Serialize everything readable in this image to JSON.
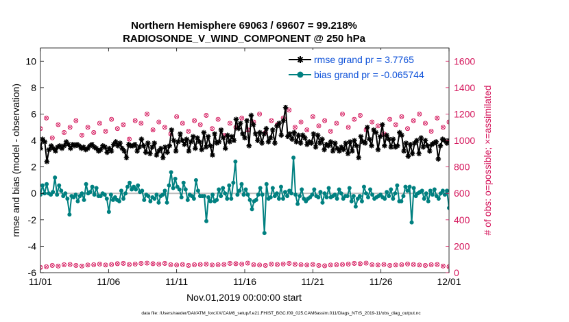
{
  "chart_data": {
    "type": "line",
    "title": "Northern Hemisphere 69063 / 69607 = 99.218%",
    "subtitle": "RADIOSONDE_V_WIND_COMPONENT @ 250 hPa",
    "xlabel": "Nov.01,2019 00:00:00 start",
    "ylabel_left": "rmse and bias (model - observation)",
    "ylabel_right": "# of obs: o=possible; ×=assimilated",
    "footer": "data file: /Users/raeder/DAI/ATM_forcXX/CAM6_setup/f.e21.FHIST_BGC.f09_025.CAM6assim.011/Diags_NTrS_2019-11/obs_diag_output.nc",
    "xlim": [
      0,
      30
    ],
    "xtick_values": [
      0,
      5,
      10,
      15,
      20,
      25,
      30
    ],
    "xtick_labels": [
      "11/01",
      "11/06",
      "11/11",
      "11/16",
      "11/21",
      "11/26",
      "12/01"
    ],
    "ylim_left": [
      -6,
      11
    ],
    "yticks_left": [
      -6,
      -4,
      -2,
      0,
      2,
      4,
      6,
      8,
      10
    ],
    "ylim_right": [
      0,
      1700
    ],
    "yticks_right": [
      0,
      200,
      400,
      600,
      800,
      1000,
      1200,
      1400,
      1600
    ],
    "series": [
      {
        "name": "rmse grand pr = 3.7765",
        "color": "#000000",
        "marker": "asterisk",
        "values": [
          3.4,
          4.1,
          3.9,
          2.4,
          3.3,
          3.6,
          3.4,
          3.2,
          3.5,
          3.6,
          3.4,
          3.6,
          3.9,
          3.7,
          3.4,
          3.7,
          3.6,
          3.7,
          3.6,
          3.4,
          3.5,
          3.3,
          3.4,
          3.6,
          3.7,
          3.5,
          3.4,
          3.2,
          3.3,
          3.6,
          3.5,
          3.1,
          3.4,
          3.2,
          3.7,
          3.9,
          3.6,
          3.8,
          3.4,
          3.2,
          2.7,
          3.7,
          3.6,
          3.6,
          3.7,
          3.2,
          3.5,
          4.1,
          3.6,
          3.1,
          3.8,
          3.0,
          3.5,
          3.8,
          2.9,
          3.2,
          3.4,
          2.7,
          3.5,
          3.1,
          3.6,
          4.8,
          4.0,
          3.2,
          3.9,
          4.5,
          4.0,
          3.7,
          4.1,
          3.2,
          3.9,
          4.3,
          3.4,
          4.2,
          3.9,
          3.3,
          4.6,
          3.5,
          4.3,
          3.6,
          2.9,
          4.5,
          3.8,
          3.9,
          4.8,
          4.2,
          3.4,
          4.4,
          3.9,
          4.3,
          4.0,
          5.6,
          4.9,
          5.3,
          4.5,
          4.2,
          5.5,
          3.6,
          5.9,
          5.2,
          4.5,
          4.0,
          4.6,
          3.8,
          4.5,
          4.9,
          3.9,
          4.2,
          4.8,
          3.8,
          5.1,
          5.3,
          4.4,
          5.5,
          6.5,
          4.3,
          4.5,
          4.1,
          4.6,
          3.9,
          4.4,
          3.8,
          4.4,
          4.2,
          3.7,
          3.9,
          3.8,
          4.5,
          3.5,
          4.4,
          3.8,
          4.1,
          3.3,
          3.7,
          3.6,
          3.9,
          3.2,
          3.8,
          3.4,
          3.2,
          3.5,
          3.3,
          3.8,
          3.0,
          3.9,
          3.2,
          4.0,
          3.6,
          2.7,
          4.3,
          3.9,
          3.8,
          5.0,
          4.1,
          3.6,
          4.8,
          4.6,
          3.3,
          4.3,
          5.2,
          3.6,
          4.4,
          4.1,
          3.5,
          4.1,
          3.5,
          3.6,
          4.6,
          4.4,
          3.2,
          3.8,
          2.8,
          3.7,
          3.0,
          3.8,
          4.0,
          3.0,
          4.2,
          3.5,
          4.0,
          3.6,
          3.2,
          3.7,
          3.8,
          3.9,
          2.6,
          3.6,
          4.1,
          4.0,
          3.8,
          4.0
        ]
      },
      {
        "name": "bias grand pr = -0.065744",
        "color": "#008080",
        "marker": "circle",
        "values": [
          -0.1,
          0.6,
          0.0,
          0.7,
          0.0,
          -0.1,
          0.1,
          1.2,
          -0.1,
          0.6,
          0.2,
          -0.2,
          0.0,
          -0.4,
          -1.6,
          -0.2,
          -0.3,
          -0.1,
          -0.6,
          -0.2,
          0.0,
          -0.5,
          0.7,
          0.0,
          0.1,
          0.5,
          -0.1,
          0.4,
          -0.2,
          -0.2,
          0.0,
          -0.1,
          -0.4,
          -1.4,
          -0.1,
          -0.5,
          -0.3,
          -0.5,
          -0.6,
          0.2,
          -0.4,
          0.0,
          0.5,
          0.8,
          0.3,
          0.5,
          0.3,
          0.6,
          0.1,
          0.2,
          -0.5,
          -0.1,
          -0.2,
          -0.6,
          -0.3,
          -0.4,
          -0.1,
          -0.7,
          -0.2,
          -0.1,
          0.2,
          -0.7,
          0.6,
          1.6,
          0.4,
          1.1,
          0.5,
          0.3,
          -0.3,
          0.8,
          0.3,
          -0.5,
          -0.1,
          -0.2,
          -0.4,
          1.0,
          0.2,
          -0.2,
          -0.2,
          -0.2,
          -2.1,
          -0.3,
          -0.6,
          -0.1,
          -0.6,
          -0.5,
          0.3,
          -0.2,
          0.4,
          0.0,
          -0.4,
          0.6,
          -0.4,
          0.8,
          2.4,
          -0.1,
          0.2,
          0.7,
          -0.1,
          0.3,
          -0.1,
          -0.5,
          -1.2,
          -0.6,
          -0.5,
          -0.1,
          0.4,
          -0.1,
          -3.0,
          0.7,
          -0.4,
          -0.3,
          0.4,
          -0.2,
          0.0,
          -0.4,
          0.5,
          -0.4,
          0.1,
          -0.2,
          0.2,
          0.0,
          2.7,
          -0.1,
          -0.8,
          -0.2,
          0.3,
          -0.4,
          -0.6,
          -0.4,
          -0.3,
          -0.1,
          0.3,
          -0.2,
          -0.3,
          0.1,
          -0.7,
          0.0,
          -0.3,
          0.4,
          -0.3,
          -0.2,
          -0.1,
          -0.4,
          0.3,
          0.0,
          -0.4,
          -0.2,
          -0.2,
          0.4,
          -0.6,
          -0.2,
          -1.0,
          -0.4,
          -0.2,
          -0.6,
          0.5,
          0.0,
          -0.3,
          0.3,
          -0.1,
          -0.4,
          -0.3,
          -0.2,
          -0.1,
          -0.3,
          -0.4,
          0.1,
          -0.2,
          0.3,
          -0.4,
          0.0,
          0.6,
          -0.6,
          -0.6,
          -0.2,
          0.5,
          0.2,
          0.5,
          -2.2,
          0.4,
          -0.2,
          0.0,
          0.1,
          0.2,
          -0.4,
          0.0,
          -0.6,
          0.2,
          -0.1,
          0.3,
          -0.2,
          -0.4,
          0.0,
          0.2,
          -0.1,
          0.2,
          -1.1
        ]
      },
      {
        "name": "possible",
        "color": "#d4145a",
        "axis": "right",
        "marker": "o",
        "values": [
          1090,
          1170,
          1020,
          1120,
          1060,
          1100,
          1150,
          1040,
          1100,
          1060,
          1130,
          1070,
          1160,
          1090,
          1120,
          1010,
          1150,
          1130,
          1200,
          1080,
          1140,
          1100,
          1050,
          1180,
          1130,
          1070,
          1150,
          1120,
          1190,
          1090,
          1160,
          1040,
          1130,
          1100,
          1170,
          1080,
          1140,
          1200,
          1060,
          1150,
          1120,
          1170,
          1230,
          1100,
          1140,
          1080,
          1180,
          1110,
          1150,
          1070,
          1130,
          1200,
          1100,
          1160,
          1190,
          1080,
          1140,
          1110,
          1050,
          1160,
          1120,
          1180,
          1090,
          1150,
          1200,
          1130,
          1070,
          1170,
          1100,
          1140
        ]
      },
      {
        "name": "assimilated",
        "color": "#d4145a",
        "axis": "right",
        "marker": "x",
        "values": [
          40,
          45,
          55,
          50,
          60,
          62,
          55,
          50,
          58,
          60,
          65,
          58,
          62,
          68,
          70,
          62,
          65,
          70,
          72,
          68,
          65,
          70,
          60,
          58,
          62,
          55,
          60,
          62,
          65,
          58,
          60,
          62,
          70,
          68,
          65,
          72,
          60,
          58,
          55,
          65,
          62,
          66,
          70,
          64,
          60,
          58,
          62,
          55,
          52,
          58,
          60,
          62,
          65,
          70,
          68,
          72,
          60,
          58,
          62,
          55,
          58,
          60,
          66,
          62,
          58,
          55,
          60,
          62,
          50,
          45
        ]
      }
    ]
  }
}
